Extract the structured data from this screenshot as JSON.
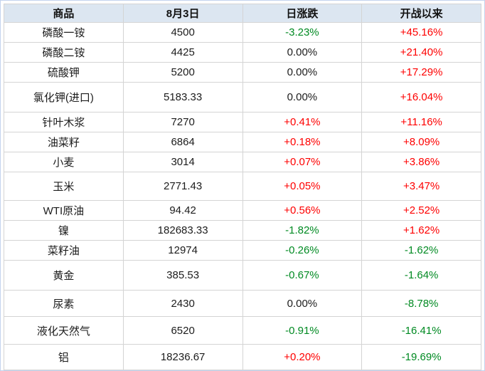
{
  "colors": {
    "up": "#fe0000",
    "down": "#008a22",
    "flat": "#1c1c1c",
    "header_bg": "#dce6f1",
    "grid_border": "#d4d4d4",
    "outer_border": "#c3d3ee"
  },
  "table": {
    "headers": [
      "商品",
      "8月3日",
      "日涨跌",
      "开战以来"
    ],
    "rows": [
      {
        "name": "磷酸一铵",
        "price": "4500",
        "daily_change": "-3.23%",
        "daily_dir": "down",
        "since_war": "+45.16%",
        "since_dir": "up"
      },
      {
        "name": "磷酸二铵",
        "price": "4425",
        "daily_change": "0.00%",
        "daily_dir": "flat",
        "since_war": "+21.40%",
        "since_dir": "up"
      },
      {
        "name": "硫酸钾",
        "price": "5200",
        "daily_change": "0.00%",
        "daily_dir": "flat",
        "since_war": "+17.29%",
        "since_dir": "up"
      },
      {
        "name": "氯化钾(进口)",
        "price": "5183.33",
        "daily_change": "0.00%",
        "daily_dir": "flat",
        "since_war": "+16.04%",
        "since_dir": "up"
      },
      {
        "name": "针叶木浆",
        "price": "7270",
        "daily_change": "+0.41%",
        "daily_dir": "up",
        "since_war": "+11.16%",
        "since_dir": "up"
      },
      {
        "name": "油菜籽",
        "price": "6864",
        "daily_change": "+0.18%",
        "daily_dir": "up",
        "since_war": "+8.09%",
        "since_dir": "up"
      },
      {
        "name": "小麦",
        "price": "3014",
        "daily_change": "+0.07%",
        "daily_dir": "up",
        "since_war": "+3.86%",
        "since_dir": "up"
      },
      {
        "name": "玉米",
        "price": "2771.43",
        "daily_change": "+0.05%",
        "daily_dir": "up",
        "since_war": "+3.47%",
        "since_dir": "up"
      },
      {
        "name": "WTI原油",
        "price": "94.42",
        "daily_change": "+0.56%",
        "daily_dir": "up",
        "since_war": "+2.52%",
        "since_dir": "up"
      },
      {
        "name": "镍",
        "price": "182683.33",
        "daily_change": "-1.82%",
        "daily_dir": "down",
        "since_war": "+1.62%",
        "since_dir": "up"
      },
      {
        "name": "菜籽油",
        "price": "12974",
        "daily_change": "-0.26%",
        "daily_dir": "down",
        "since_war": "-1.62%",
        "since_dir": "down"
      },
      {
        "name": "黄金",
        "price": "385.53",
        "daily_change": "-0.67%",
        "daily_dir": "down",
        "since_war": "-1.64%",
        "since_dir": "down"
      },
      {
        "name": "尿素",
        "price": "2430",
        "daily_change": "0.00%",
        "daily_dir": "flat",
        "since_war": "-8.78%",
        "since_dir": "down"
      },
      {
        "name": "液化天然气",
        "price": "6520",
        "daily_change": "-0.91%",
        "daily_dir": "down",
        "since_war": "-16.41%",
        "since_dir": "down"
      },
      {
        "name": "铝",
        "price": "18236.67",
        "daily_change": "+0.20%",
        "daily_dir": "up",
        "since_war": "-19.69%",
        "since_dir": "down"
      }
    ]
  },
  "chart_data": {
    "type": "table",
    "title": "",
    "columns": [
      "商品",
      "8月3日",
      "日涨跌",
      "开战以来"
    ],
    "rows": [
      [
        "磷酸一铵",
        4500,
        "-3.23%",
        "+45.16%"
      ],
      [
        "磷酸二铵",
        4425,
        "0.00%",
        "+21.40%"
      ],
      [
        "硫酸钾",
        5200,
        "0.00%",
        "+17.29%"
      ],
      [
        "氯化钾(进口)",
        5183.33,
        "0.00%",
        "+16.04%"
      ],
      [
        "针叶木浆",
        7270,
        "+0.41%",
        "+11.16%"
      ],
      [
        "油菜籽",
        6864,
        "+0.18%",
        "+8.09%"
      ],
      [
        "小麦",
        3014,
        "+0.07%",
        "+3.86%"
      ],
      [
        "玉米",
        2771.43,
        "+0.05%",
        "+3.47%"
      ],
      [
        "WTI原油",
        94.42,
        "+0.56%",
        "+2.52%"
      ],
      [
        "镍",
        182683.33,
        "-1.82%",
        "+1.62%"
      ],
      [
        "菜籽油",
        12974,
        "-0.26%",
        "-1.62%"
      ],
      [
        "黄金",
        385.53,
        "-0.67%",
        "-1.64%"
      ],
      [
        "尿素",
        2430,
        "0.00%",
        "-8.78%"
      ],
      [
        "液化天然气",
        6520,
        "-0.91%",
        "-16.41%"
      ],
      [
        "铝",
        18236.67,
        "+0.20%",
        "-19.69%"
      ]
    ],
    "notes": "positive changes rendered red, negative rendered green, zero rendered black"
  }
}
